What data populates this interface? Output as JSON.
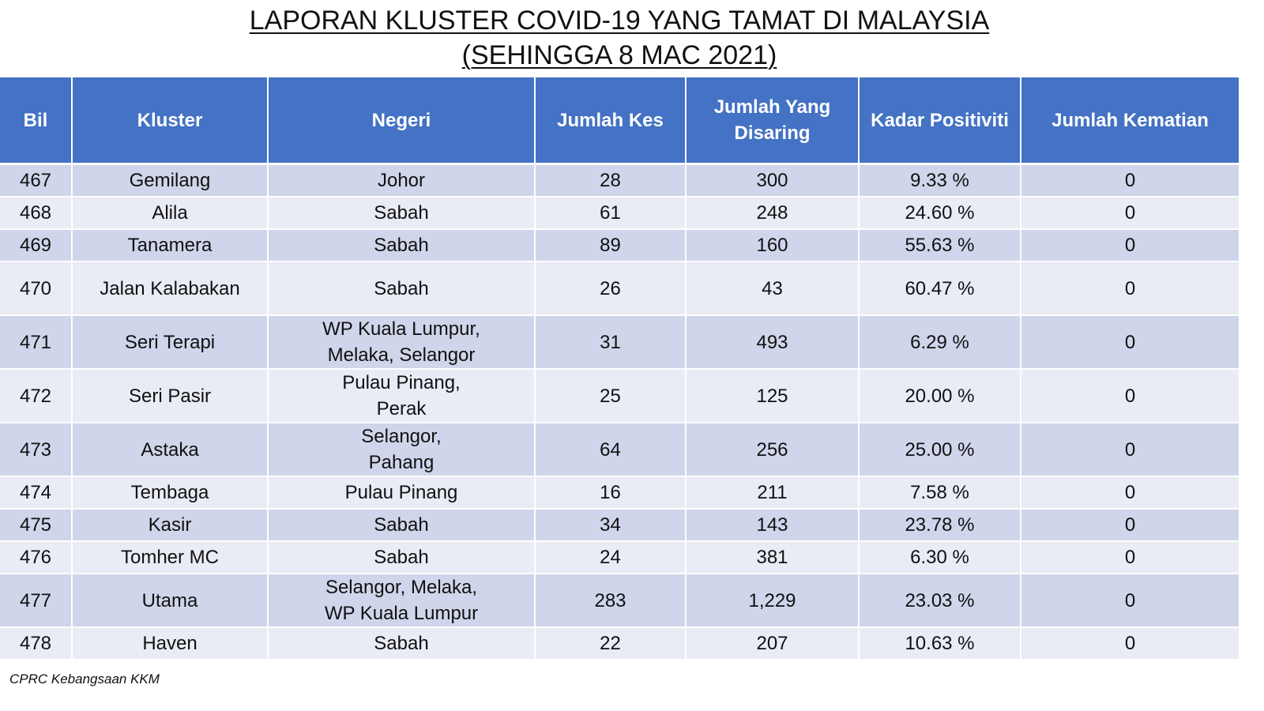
{
  "title": {
    "line1": "LAPORAN KLUSTER COVID-19 YANG TAMAT DI MALAYSIA",
    "line2": "(SEHINGGA 8 MAC 2021)"
  },
  "table": {
    "headers": {
      "bil": "Bil",
      "kluster": "Kluster",
      "negeri": "Negeri",
      "jumlah_kes": "Jumlah Kes",
      "jumlah_disaring": "Jumlah Yang Disaring",
      "kadar_positiviti": "Kadar Positiviti",
      "jumlah_kematian": "Jumlah Kematian"
    },
    "rows": [
      {
        "bil": "467",
        "kluster": "Gemilang",
        "negeri": "Johor",
        "kes": "28",
        "disaring": "300",
        "positiviti": "9.33 %",
        "kematian": "0"
      },
      {
        "bil": "468",
        "kluster": "Alila",
        "negeri": "Sabah",
        "kes": "61",
        "disaring": "248",
        "positiviti": "24.60 %",
        "kematian": "0"
      },
      {
        "bil": "469",
        "kluster": "Tanamera",
        "negeri": "Sabah",
        "kes": "89",
        "disaring": "160",
        "positiviti": "55.63 %",
        "kematian": "0"
      },
      {
        "bil": "470",
        "kluster": "Jalan Kalabakan",
        "negeri": "Sabah",
        "kes": "26",
        "disaring": "43",
        "positiviti": "60.47 %",
        "kematian": "0"
      },
      {
        "bil": "471",
        "kluster": "Seri Terapi",
        "negeri": "WP Kuala Lumpur, Melaka, Selangor",
        "kes": "31",
        "disaring": "493",
        "positiviti": "6.29 %",
        "kematian": "0"
      },
      {
        "bil": "472",
        "kluster": "Seri Pasir",
        "negeri": "Pulau Pinang, Perak",
        "kes": "25",
        "disaring": "125",
        "positiviti": "20.00 %",
        "kematian": "0"
      },
      {
        "bil": "473",
        "kluster": "Astaka",
        "negeri": "Selangor, Pahang",
        "kes": "64",
        "disaring": "256",
        "positiviti": "25.00 %",
        "kematian": "0"
      },
      {
        "bil": "474",
        "kluster": "Tembaga",
        "negeri": "Pulau Pinang",
        "kes": "16",
        "disaring": "211",
        "positiviti": "7.58 %",
        "kematian": "0"
      },
      {
        "bil": "475",
        "kluster": "Kasir",
        "negeri": "Sabah",
        "kes": "34",
        "disaring": "143",
        "positiviti": "23.78 %",
        "kematian": "0"
      },
      {
        "bil": "476",
        "kluster": "Tomher MC",
        "negeri": "Sabah",
        "kes": "24",
        "disaring": "381",
        "positiviti": "6.30 %",
        "kematian": "0"
      },
      {
        "bil": "477",
        "kluster": "Utama",
        "negeri": "Selangor, Melaka, WP Kuala Lumpur",
        "kes": "283",
        "disaring": "1,229",
        "positiviti": "23.03 %",
        "kematian": "0"
      },
      {
        "bil": "478",
        "kluster": "Haven",
        "negeri": "Sabah",
        "kes": "22",
        "disaring": "207",
        "positiviti": "10.63 %",
        "kematian": "0"
      }
    ]
  },
  "footer": {
    "source": "CPRC Kebangsaan KKM"
  }
}
